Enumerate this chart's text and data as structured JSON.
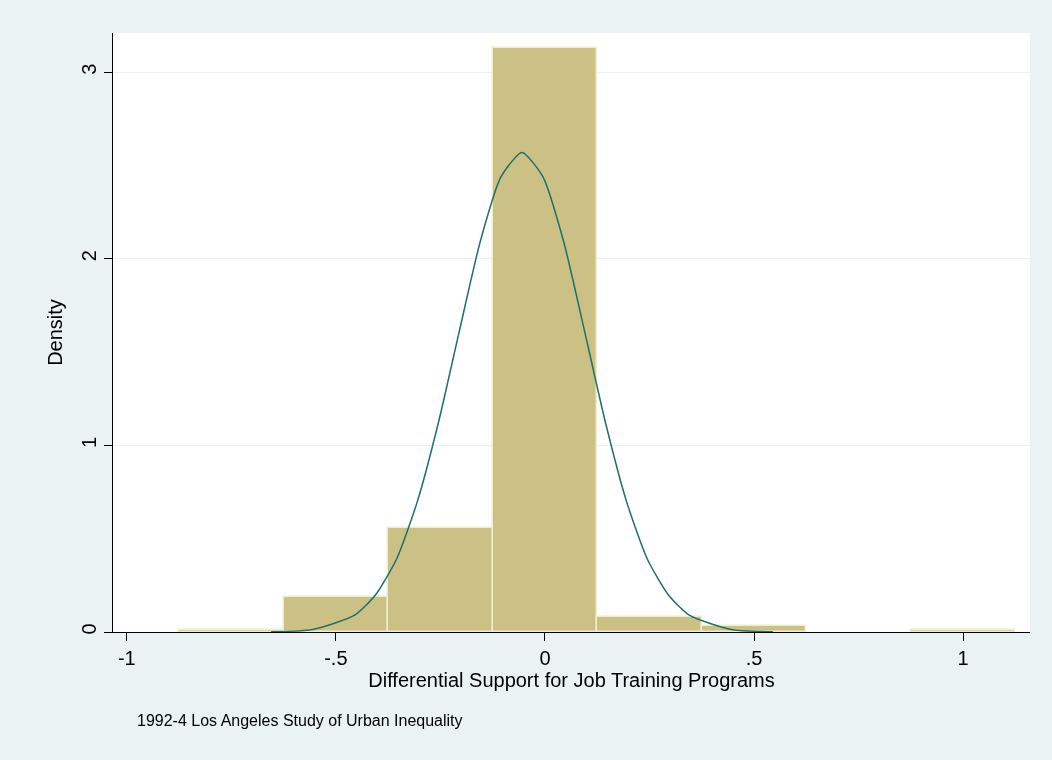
{
  "chart_data": {
    "type": "histogram",
    "xlabel": "Differential Support for Job Training Programs",
    "ylabel": "Density",
    "annotations": [
      "1992-4 Los Angeles Study of Urban Inequality"
    ],
    "bins": [
      -0.875,
      -0.625,
      -0.375,
      -0.125,
      0.125,
      0.375,
      0.625,
      0.875,
      1.125
    ],
    "values": [
      0.01,
      0.19,
      0.56,
      3.13,
      0.08,
      0.03,
      0,
      0.01
    ],
    "color": "#cbc185",
    "series": [
      {
        "type": "line",
        "color": "#1f6f6a",
        "x": [
          -0.655,
          -0.555,
          -0.455,
          -0.405,
          -0.355,
          -0.305,
          -0.255,
          -0.205,
          -0.155,
          -0.105,
          -0.055,
          -0.005,
          0.045,
          0.095,
          0.145,
          0.195,
          0.245,
          0.295,
          0.345,
          0.445,
          0.545
        ],
        "values": [
          0.001,
          0.014,
          0.09,
          0.2,
          0.39,
          0.7,
          1.12,
          1.61,
          2.09,
          2.44,
          2.57,
          2.44,
          2.09,
          1.61,
          1.12,
          0.7,
          0.39,
          0.2,
          0.09,
          0.014,
          0.001
        ]
      }
    ],
    "xlim": [
      -1.033,
      1.16
    ],
    "ylim": [
      0,
      3.21
    ],
    "xticks": [
      -1,
      {
        "value": -0.5,
        "label": "-.5"
      },
      0,
      {
        "value": 0.5,
        "label": ".5"
      },
      1
    ],
    "yticks": [
      0,
      1,
      2,
      3
    ],
    "grid": "y"
  }
}
